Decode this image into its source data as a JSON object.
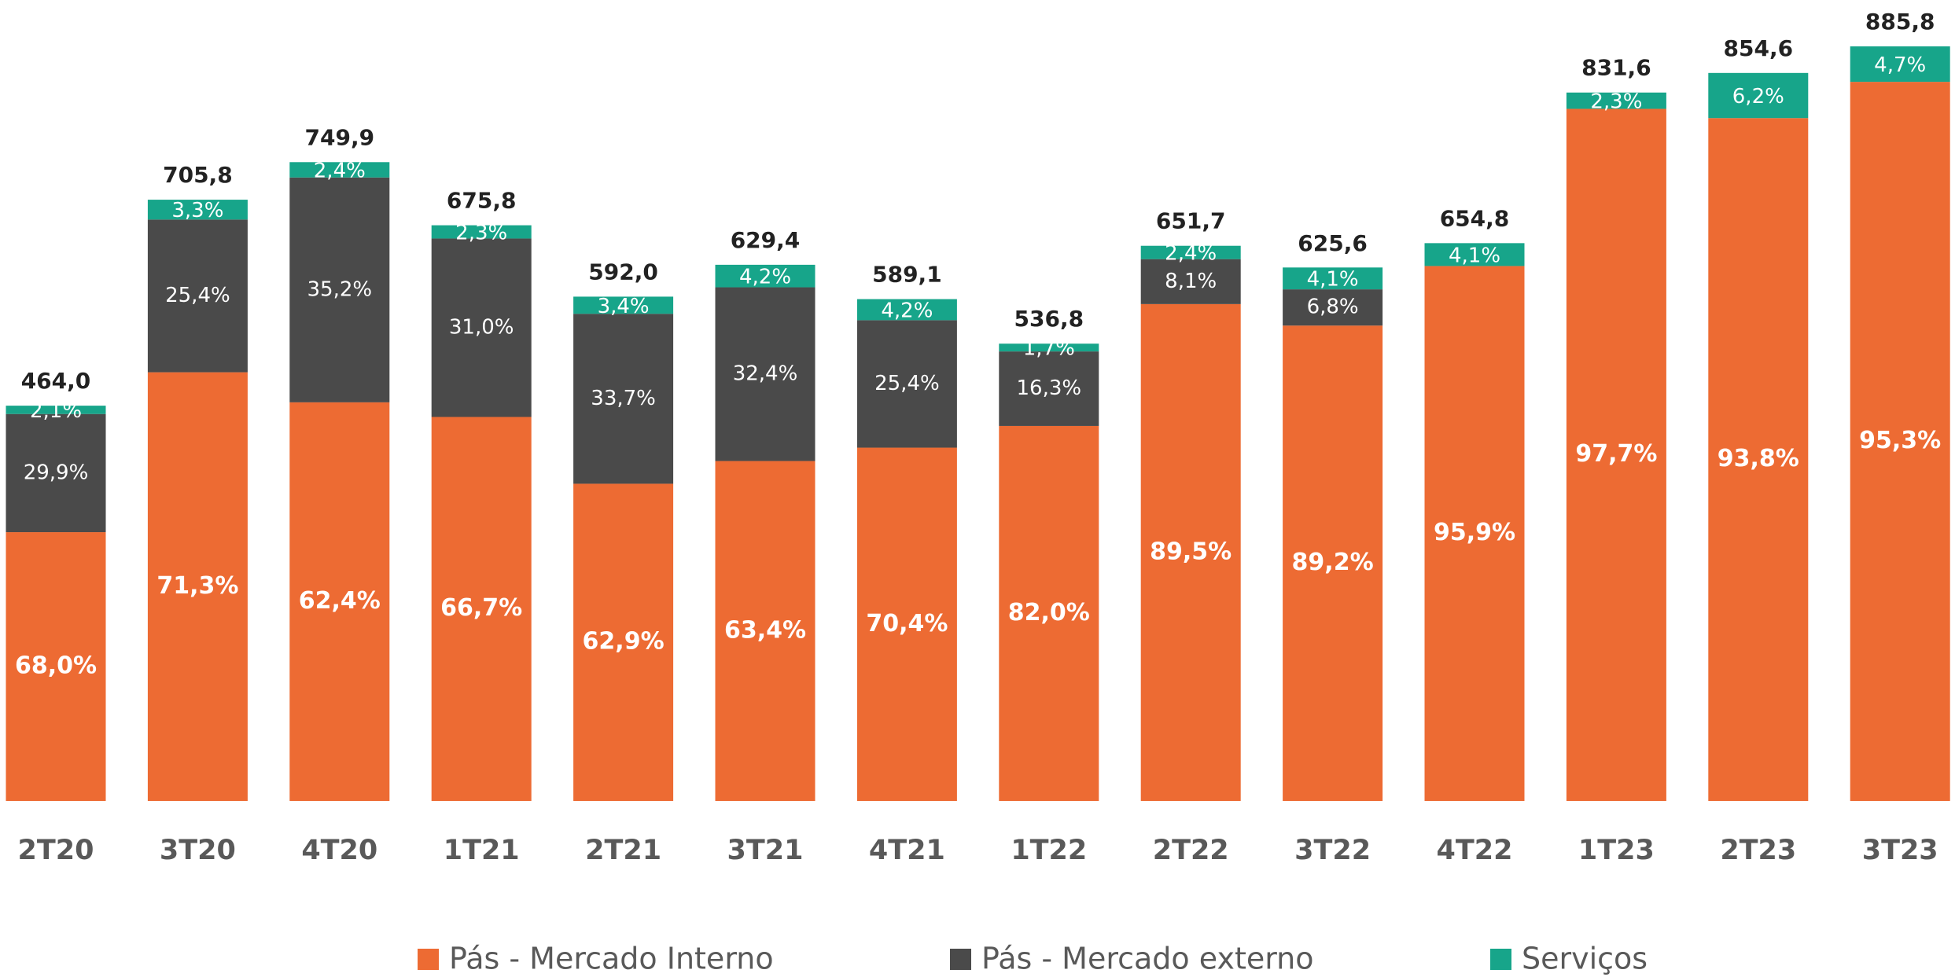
{
  "chart_data": {
    "type": "stacked_bar",
    "categories": [
      "2T20",
      "3T20",
      "4T20",
      "1T21",
      "2T21",
      "3T21",
      "4T21",
      "1T22",
      "2T22",
      "3T22",
      "4T22",
      "1T23",
      "2T23",
      "3T23"
    ],
    "series": [
      {
        "name": "Pás - Mercado Interno",
        "color": "#ED6B33",
        "values": [
          68.0,
          71.3,
          62.4,
          66.7,
          62.9,
          63.4,
          70.4,
          82.0,
          89.5,
          89.2,
          95.9,
          97.7,
          93.8,
          95.3
        ],
        "value_labels": [
          "68,0%",
          "71,3%",
          "62,4%",
          "66,7%",
          "62,9%",
          "63,4%",
          "70,4%",
          "82,0%",
          "89,5%",
          "89,2%",
          "95,9%",
          "97,7%",
          "93,8%",
          "95,3%"
        ]
      },
      {
        "name": "Pás - Mercado externo",
        "color": "#4A4A4A",
        "values": [
          29.9,
          25.4,
          35.2,
          31.0,
          33.7,
          32.4,
          25.4,
          16.3,
          8.1,
          6.8,
          null,
          null,
          null,
          null
        ],
        "value_labels": [
          "29,9%",
          "25,4%",
          "35,2%",
          "31,0%",
          "33,7%",
          "32,4%",
          "25,4%",
          "16,3%",
          "8,1%",
          "6,8%",
          null,
          null,
          null,
          null
        ]
      },
      {
        "name": "Serviços",
        "color": "#17A58A",
        "values": [
          2.1,
          3.3,
          2.4,
          2.3,
          3.4,
          4.2,
          4.2,
          1.7,
          2.4,
          4.1,
          4.1,
          2.3,
          6.2,
          4.7
        ],
        "value_labels": [
          "2,1%",
          "3,3%",
          "2,4%",
          "2,3%",
          "3,4%",
          "4,2%",
          "4,2%",
          "1,7%",
          "2,4%",
          "4,1%",
          "4,1%",
          "2,3%",
          "6,2%",
          "4,7%"
        ]
      }
    ],
    "totals": {
      "values": [
        464.0,
        705.8,
        749.9,
        675.8,
        592.0,
        629.4,
        589.1,
        536.8,
        651.7,
        625.6,
        654.8,
        831.6,
        854.6,
        885.8
      ],
      "value_labels": [
        "464,0",
        "705,8",
        "749,9",
        "675,8",
        "592,0",
        "629,4",
        "589,1",
        "536,8",
        "651,7",
        "625,6",
        "654,8",
        "831,6",
        "854,6",
        "885,8"
      ]
    },
    "legend": "bottom"
  }
}
